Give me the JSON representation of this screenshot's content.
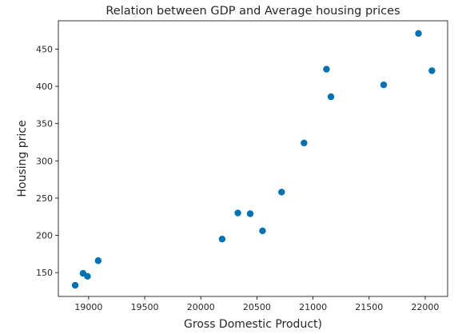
{
  "chart_data": {
    "type": "scatter",
    "title": "Relation between GDP and Average housing prices",
    "xlabel": "Gross Domestic Product)",
    "ylabel": "Housing price",
    "xlim": [
      18730,
      22200
    ],
    "ylim": [
      118,
      488
    ],
    "xticks": [
      19000,
      19500,
      20000,
      20500,
      21000,
      21500,
      22000
    ],
    "yticks": [
      150,
      200,
      250,
      300,
      350,
      400,
      450
    ],
    "grid": false,
    "marker_color": "#0072b2",
    "points": [
      {
        "x": 18880,
        "y": 133
      },
      {
        "x": 18950,
        "y": 149
      },
      {
        "x": 18990,
        "y": 145
      },
      {
        "x": 19085,
        "y": 166
      },
      {
        "x": 20190,
        "y": 195
      },
      {
        "x": 20330,
        "y": 230
      },
      {
        "x": 20440,
        "y": 229
      },
      {
        "x": 20550,
        "y": 206
      },
      {
        "x": 20720,
        "y": 258
      },
      {
        "x": 20920,
        "y": 324
      },
      {
        "x": 21120,
        "y": 423
      },
      {
        "x": 21160,
        "y": 386
      },
      {
        "x": 21630,
        "y": 402
      },
      {
        "x": 21940,
        "y": 471
      },
      {
        "x": 22060,
        "y": 421
      }
    ]
  }
}
